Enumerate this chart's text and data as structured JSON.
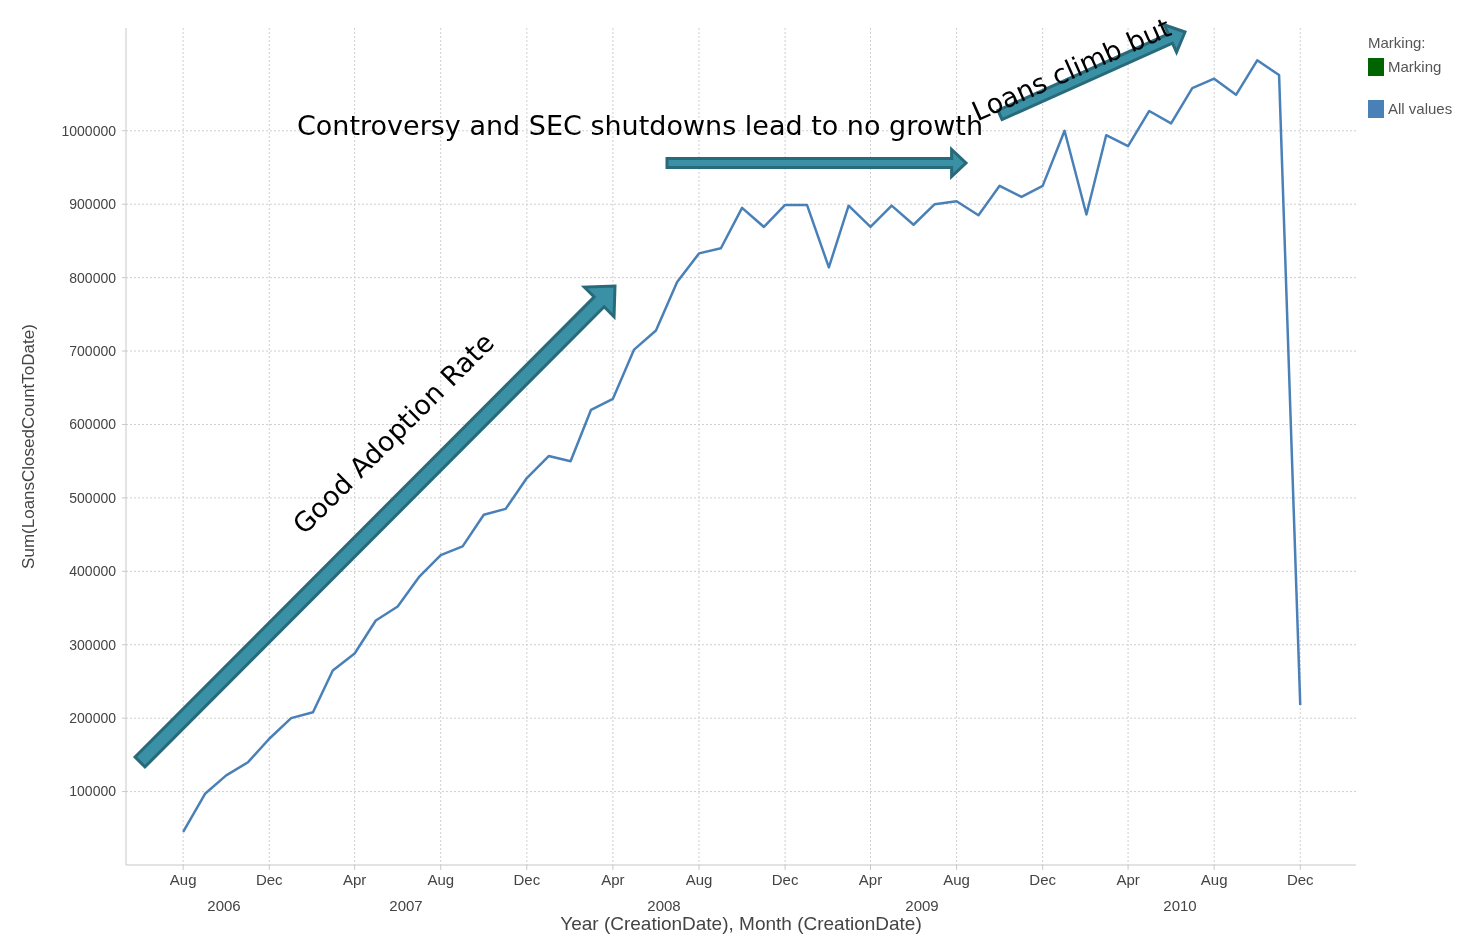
{
  "chart_data": {
    "type": "line",
    "xlabel": "Year (CreationDate), Month (CreationDate)",
    "ylabel": "Sum(LoansClosedCountToDate)",
    "legend_title": "Marking:",
    "legend": "top right",
    "grid": true,
    "marker": "none",
    "line_style": "solid",
    "x": [
      "2006-08",
      "2006-09",
      "2006-10",
      "2006-11",
      "2006-12",
      "2007-01",
      "2007-02",
      "2007-03",
      "2007-04",
      "2007-05",
      "2007-06",
      "2007-07",
      "2007-08",
      "2007-09",
      "2007-10",
      "2007-11",
      "2007-12",
      "2008-01",
      "2008-02",
      "2008-03",
      "2008-04",
      "2008-05",
      "2008-06",
      "2008-07",
      "2008-08",
      "2008-09",
      "2008-10",
      "2008-11",
      "2008-12",
      "2009-01",
      "2009-02",
      "2009-03",
      "2009-04",
      "2009-05",
      "2009-06",
      "2009-07",
      "2009-08",
      "2009-09",
      "2009-10",
      "2009-11",
      "2009-12",
      "2010-01",
      "2010-02",
      "2010-03",
      "2010-04",
      "2010-05",
      "2010-06",
      "2010-07",
      "2010-08",
      "2010-09",
      "2010-10",
      "2010-11",
      "2010-12"
    ],
    "series": [
      {
        "name": "Marking",
        "color": "#006400",
        "values": [
          null,
          null,
          null,
          null,
          null,
          null,
          null,
          null,
          null,
          null,
          null,
          null,
          null,
          null,
          null,
          null,
          null,
          null,
          null,
          null,
          null,
          null,
          null,
          null,
          null,
          null,
          null,
          null,
          null,
          null,
          null,
          null,
          null,
          null,
          null,
          null,
          null,
          null,
          null,
          null,
          null,
          null,
          null,
          null,
          null,
          null,
          null,
          null,
          null,
          null,
          null,
          null,
          null
        ]
      },
      {
        "name": "All values",
        "color": "#4a80b8",
        "values": [
          45000,
          97000,
          122000,
          140000,
          172000,
          200000,
          208000,
          265000,
          288000,
          333000,
          352000,
          392000,
          422000,
          434000,
          477000,
          485000,
          527000,
          557000,
          550000,
          620000,
          635000,
          702000,
          728000,
          794000,
          833000,
          840000,
          895000,
          869000,
          899000,
          899000,
          814000,
          898000,
          869000,
          898000,
          872000,
          900000,
          904000,
          885000,
          925000,
          910000,
          925000,
          1000000,
          886000,
          994000,
          979000,
          1027000,
          1010000,
          1058000,
          1071000,
          1049000,
          1096000,
          1076000,
          218000
        ]
      }
    ],
    "xlim": [
      "2006-05-12",
      "2011-02-18"
    ],
    "xticks": [
      {
        "value": "2006-08",
        "label": "Aug"
      },
      {
        "value": "2006-12",
        "label": "Dec"
      },
      {
        "value": "2007-04",
        "label": "Apr"
      },
      {
        "value": "2007-08",
        "label": "Aug"
      },
      {
        "value": "2007-12",
        "label": "Dec"
      },
      {
        "value": "2008-04",
        "label": "Apr"
      },
      {
        "value": "2008-08",
        "label": "Aug"
      },
      {
        "value": "2008-12",
        "label": "Dec"
      },
      {
        "value": "2009-04",
        "label": "Apr"
      },
      {
        "value": "2009-08",
        "label": "Aug"
      },
      {
        "value": "2009-12",
        "label": "Dec"
      },
      {
        "value": "2010-04",
        "label": "Apr"
      },
      {
        "value": "2010-08",
        "label": "Aug"
      },
      {
        "value": "2010-12",
        "label": "Dec"
      }
    ],
    "ylim": [
      0,
      1140000
    ],
    "yticks": [
      100000,
      200000,
      300000,
      400000,
      500000,
      600000,
      700000,
      800000,
      900000,
      1000000
    ],
    "annotations": [
      "2006",
      "2007",
      "2008",
      "2009",
      "2010",
      "Good Adoption Rate",
      "Controversy and SEC shutdowns lead to no growth",
      "Loans climb but"
    ]
  }
}
